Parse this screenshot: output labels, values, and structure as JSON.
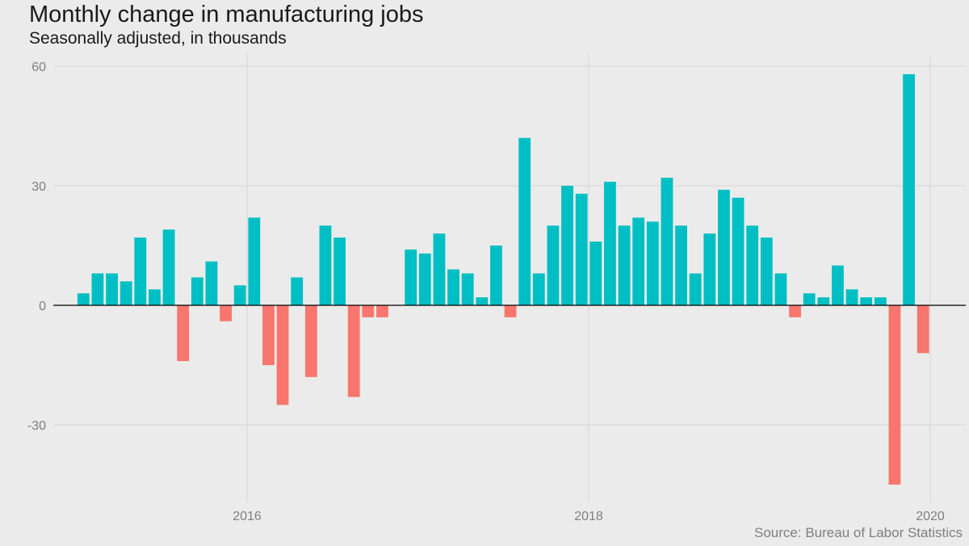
{
  "chart_data": {
    "type": "bar",
    "title": "Monthly change in manufacturing jobs",
    "subtitle": "Seasonally adjusted, in thousands",
    "caption": "Source: Bureau of Labor Statistics",
    "xlabel": "",
    "ylabel": "",
    "x_ticks": [
      "2016",
      "2018",
      "2020"
    ],
    "y_ticks": [
      -30,
      0,
      30,
      60
    ],
    "ylim": [
      -48,
      63
    ],
    "grid": true,
    "legend": "none",
    "colors": {
      "positive": "#00bfc4",
      "negative": "#f8766d",
      "zero_line": "#000000",
      "grid": "#d4d4d4"
    },
    "categories": [
      "2015-01",
      "2015-02",
      "2015-03",
      "2015-04",
      "2015-05",
      "2015-06",
      "2015-07",
      "2015-08",
      "2015-09",
      "2015-10",
      "2015-11",
      "2015-12",
      "2016-01",
      "2016-02",
      "2016-03",
      "2016-04",
      "2016-05",
      "2016-06",
      "2016-07",
      "2016-08",
      "2016-09",
      "2016-10",
      "2016-11",
      "2016-12",
      "2017-01",
      "2017-02",
      "2017-03",
      "2017-04",
      "2017-05",
      "2017-06",
      "2017-07",
      "2017-08",
      "2017-09",
      "2017-10",
      "2017-11",
      "2017-12",
      "2018-01",
      "2018-02",
      "2018-03",
      "2018-04",
      "2018-05",
      "2018-06",
      "2018-07",
      "2018-08",
      "2018-09",
      "2018-10",
      "2018-11",
      "2018-12",
      "2019-01",
      "2019-02",
      "2019-03",
      "2019-04",
      "2019-05",
      "2019-06",
      "2019-07",
      "2019-08",
      "2019-09",
      "2019-10",
      "2019-11",
      "2019-12"
    ],
    "values": [
      3,
      8,
      8,
      6,
      17,
      4,
      19,
      -14,
      7,
      11,
      -4,
      5,
      22,
      -15,
      -25,
      7,
      -18,
      20,
      17,
      -23,
      -3,
      -3,
      0,
      14,
      13,
      18,
      9,
      8,
      2,
      15,
      -3,
      42,
      8,
      20,
      30,
      28,
      16,
      31,
      20,
      22,
      21,
      32,
      20,
      8,
      18,
      29,
      27,
      20,
      17,
      8,
      -3,
      3,
      2,
      10,
      4,
      2,
      2,
      -45,
      58,
      -12
    ]
  }
}
